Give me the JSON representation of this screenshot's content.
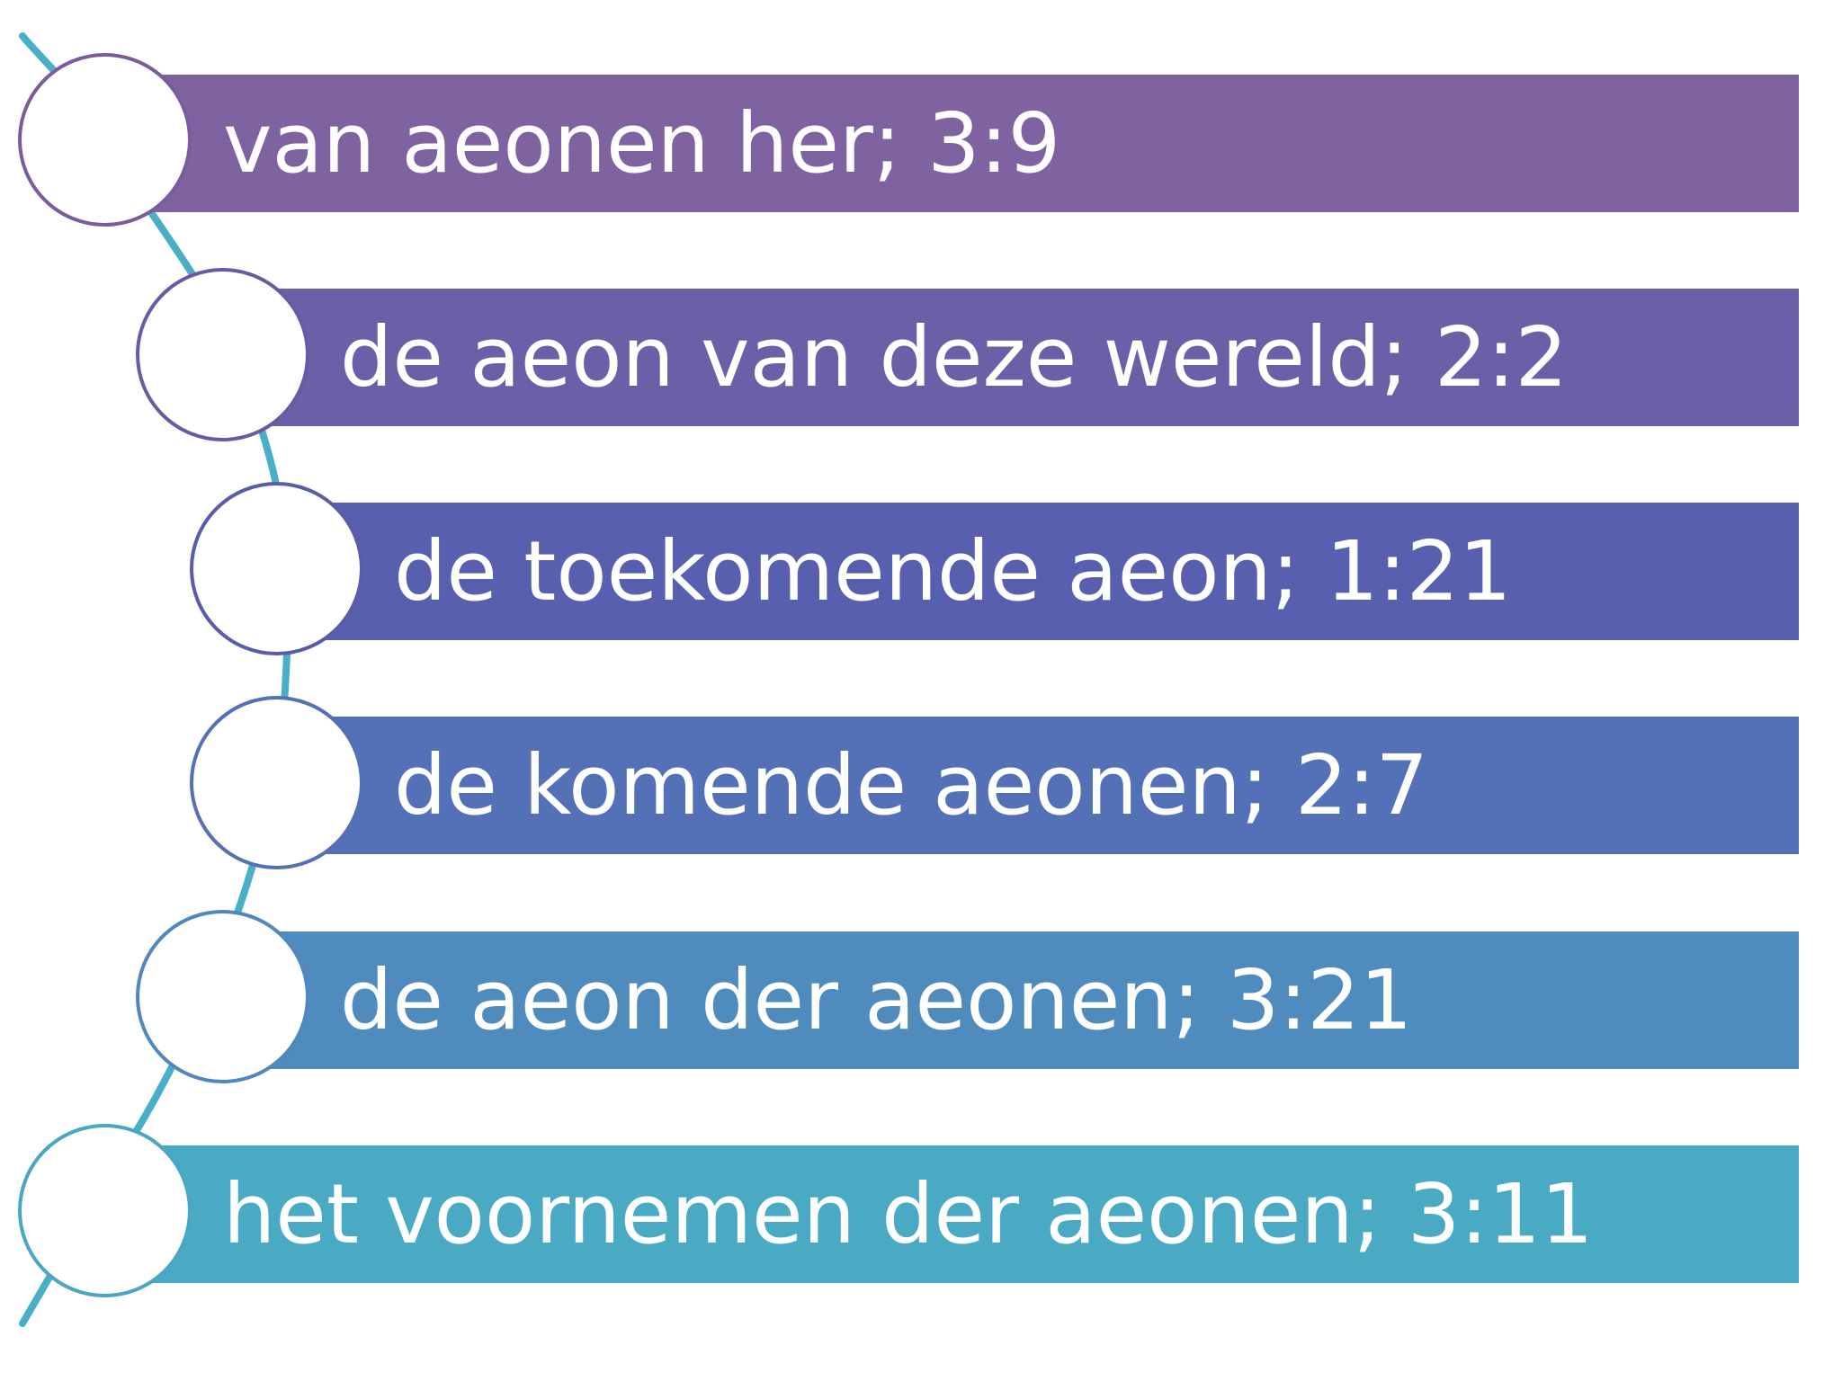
{
  "items": [
    {
      "label": "van aeonen her; 3:9",
      "color": "#7f63a1",
      "ring": "#7a5c9e"
    },
    {
      "label": "de aeon van deze wereld; 2:2",
      "color": "#6b60a8",
      "ring": "#6a5aa6"
    },
    {
      "label": "de toekomende aeon; 1:21",
      "color": "#585fae",
      "ring": "#5a5bab"
    },
    {
      "label": "de komende aeonen; 2:7",
      "color": "#5470b6",
      "ring": "#5670b6"
    },
    {
      "label": "de aeon der aeonen; 3:21",
      "color": "#4f8bbd",
      "ring": "#5088bd"
    },
    {
      "label": "het voornemen der aeonen; 3:11",
      "color": "#4aaac4",
      "ring": "#4aa6c4"
    }
  ],
  "connector_color": "#48afc7"
}
